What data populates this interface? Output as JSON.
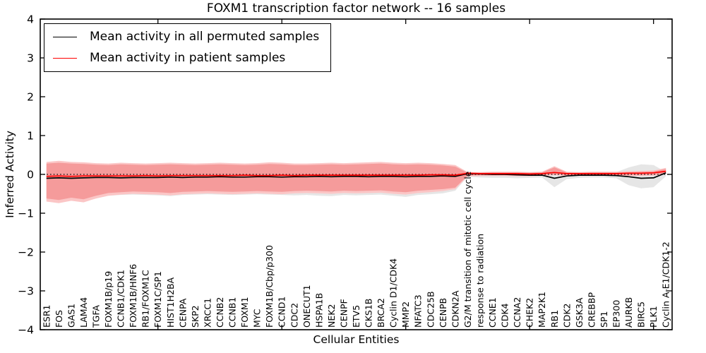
{
  "chart_data": {
    "type": "line",
    "title": "FOXM1 transcription factor network -- 16 samples",
    "xlabel": "Cellular Entities",
    "ylabel": "Inferred Activity",
    "ylim": [
      -4,
      4
    ],
    "yticks": [
      4,
      3,
      2,
      1,
      0,
      -1,
      -2,
      -3,
      -4
    ],
    "xticks": [
      10,
      20,
      30,
      40,
      50
    ],
    "grid": false,
    "legend_position": "upper left",
    "zero_reference_line": "dotted black at y=0",
    "categories": [
      "ESR1",
      "FOS",
      "GAS1",
      "LAMA4",
      "TGFA",
      "FOXM1B/p19",
      "CCNB1/CDK1",
      "FOXM1B/HNF6",
      "RB1/FOXM1C",
      "FOXM1C/SP1",
      "HIST1H2BA",
      "CENPA",
      "SKP2",
      "XRCC1",
      "CCNB2",
      "CCNB1",
      "FOXM1",
      "MYC",
      "FOXM1B/Cbp/p300",
      "CCND1",
      "CDC2",
      "ONECUT1",
      "HSPA1B",
      "NEK2",
      "CENPF",
      "ETV5",
      "CKS1B",
      "BRCA2",
      "Cyclin D1/CDK4",
      "MMP2",
      "NFATC3",
      "CDC25B",
      "CENPB",
      "CDKN2A",
      "G2/M transition of mitotic cell cycle",
      "response to radiation",
      "CCNE1",
      "CDK4",
      "CCNA2",
      "CHEK2",
      "MAP2K1",
      "RB1",
      "CDK2",
      "GSK3A",
      "CREBBP",
      "SP1",
      "EP300",
      "AURKB",
      "BIRC5",
      "PLK1",
      "Cyclin A-E1/CDK1-2"
    ],
    "series": [
      {
        "name": "Mean activity in all permuted samples",
        "color": "#000000",
        "values": [
          -0.1,
          -0.09,
          -0.1,
          -0.09,
          -0.08,
          -0.08,
          -0.09,
          -0.08,
          -0.08,
          -0.08,
          -0.07,
          -0.08,
          -0.07,
          -0.07,
          -0.06,
          -0.07,
          -0.07,
          -0.06,
          -0.06,
          -0.07,
          -0.06,
          -0.06,
          -0.05,
          -0.06,
          -0.05,
          -0.05,
          -0.06,
          -0.05,
          -0.05,
          -0.06,
          -0.05,
          -0.05,
          -0.04,
          -0.05,
          0.02,
          0.01,
          0.0,
          0.0,
          -0.01,
          -0.02,
          -0.02,
          -0.1,
          -0.04,
          -0.02,
          -0.02,
          -0.02,
          -0.03,
          -0.06,
          -0.1,
          -0.09,
          0.04
        ]
      },
      {
        "name": "Mean activity in patient samples",
        "color": "#ff0000",
        "values": [
          -0.05,
          -0.04,
          -0.05,
          -0.04,
          -0.04,
          -0.04,
          -0.04,
          -0.04,
          -0.03,
          -0.04,
          -0.03,
          -0.03,
          -0.03,
          -0.03,
          -0.03,
          -0.03,
          -0.02,
          -0.03,
          -0.03,
          -0.02,
          -0.03,
          -0.02,
          -0.02,
          -0.02,
          -0.02,
          -0.02,
          -0.02,
          -0.02,
          -0.02,
          -0.02,
          -0.02,
          -0.01,
          -0.01,
          -0.02,
          0.03,
          0.02,
          0.02,
          0.02,
          0.02,
          0.01,
          0.02,
          0.05,
          0.02,
          0.02,
          0.02,
          0.02,
          0.02,
          0.03,
          0.03,
          0.04,
          0.08
        ]
      }
    ],
    "bands": [
      {
        "name": "permuted-range",
        "color": "#e6e6e6",
        "upper": [
          0.2,
          0.22,
          0.2,
          0.2,
          0.19,
          0.18,
          0.19,
          0.19,
          0.18,
          0.19,
          0.19,
          0.19,
          0.18,
          0.19,
          0.19,
          0.19,
          0.18,
          0.19,
          0.2,
          0.19,
          0.18,
          0.18,
          0.19,
          0.19,
          0.18,
          0.19,
          0.19,
          0.2,
          0.19,
          0.18,
          0.19,
          0.18,
          0.17,
          0.15,
          0.05,
          0.05,
          0.05,
          0.05,
          0.05,
          0.05,
          0.05,
          0.06,
          0.05,
          0.05,
          0.05,
          0.05,
          0.06,
          0.18,
          0.26,
          0.24,
          0.06
        ],
        "lower": [
          -0.68,
          -0.72,
          -0.66,
          -0.7,
          -0.62,
          -0.55,
          -0.53,
          -0.52,
          -0.53,
          -0.54,
          -0.56,
          -0.53,
          -0.52,
          -0.51,
          -0.52,
          -0.53,
          -0.52,
          -0.51,
          -0.52,
          -0.53,
          -0.54,
          -0.53,
          -0.55,
          -0.56,
          -0.53,
          -0.54,
          -0.53,
          -0.52,
          -0.55,
          -0.58,
          -0.53,
          -0.51,
          -0.49,
          -0.42,
          -0.06,
          -0.08,
          -0.09,
          -0.09,
          -0.1,
          -0.09,
          -0.08,
          -0.33,
          -0.12,
          -0.09,
          -0.08,
          -0.08,
          -0.1,
          -0.28,
          -0.36,
          -0.33,
          -0.05
        ]
      },
      {
        "name": "patient-range-outer",
        "color": "#fbc6c6",
        "upper": [
          0.32,
          0.35,
          0.32,
          0.31,
          0.29,
          0.28,
          0.3,
          0.29,
          0.28,
          0.29,
          0.3,
          0.29,
          0.28,
          0.29,
          0.3,
          0.29,
          0.28,
          0.29,
          0.31,
          0.3,
          0.28,
          0.28,
          0.29,
          0.3,
          0.29,
          0.3,
          0.31,
          0.32,
          0.3,
          0.29,
          0.3,
          0.29,
          0.27,
          0.24,
          0.06,
          0.06,
          0.07,
          0.07,
          0.07,
          0.06,
          0.07,
          0.21,
          0.07,
          0.06,
          0.07,
          0.07,
          0.07,
          0.08,
          0.09,
          0.1,
          0.17
        ],
        "lower": [
          -0.7,
          -0.74,
          -0.68,
          -0.72,
          -0.62,
          -0.55,
          -0.52,
          -0.5,
          -0.51,
          -0.52,
          -0.54,
          -0.51,
          -0.5,
          -0.49,
          -0.5,
          -0.51,
          -0.5,
          -0.49,
          -0.5,
          -0.51,
          -0.49,
          -0.48,
          -0.49,
          -0.5,
          -0.48,
          -0.49,
          -0.48,
          -0.47,
          -0.5,
          -0.52,
          -0.48,
          -0.46,
          -0.43,
          -0.38,
          -0.05,
          -0.04,
          -0.04,
          -0.04,
          -0.05,
          -0.05,
          -0.04,
          -0.02,
          -0.04,
          -0.04,
          -0.04,
          -0.04,
          -0.04,
          -0.04,
          -0.04,
          -0.03,
          0.01
        ]
      },
      {
        "name": "patient-range-inner",
        "color": "#f59b9b",
        "upper": [
          0.28,
          0.3,
          0.28,
          0.27,
          0.25,
          0.24,
          0.26,
          0.25,
          0.24,
          0.25,
          0.26,
          0.25,
          0.24,
          0.25,
          0.26,
          0.25,
          0.24,
          0.25,
          0.27,
          0.26,
          0.24,
          0.24,
          0.25,
          0.26,
          0.25,
          0.26,
          0.27,
          0.28,
          0.26,
          0.25,
          0.26,
          0.25,
          0.23,
          0.2,
          0.04,
          0.04,
          0.05,
          0.05,
          0.05,
          0.04,
          0.05,
          0.18,
          0.05,
          0.04,
          0.05,
          0.05,
          0.05,
          0.06,
          0.07,
          0.08,
          0.14
        ],
        "lower": [
          -0.62,
          -0.66,
          -0.6,
          -0.64,
          -0.55,
          -0.48,
          -0.46,
          -0.44,
          -0.45,
          -0.46,
          -0.48,
          -0.45,
          -0.44,
          -0.43,
          -0.44,
          -0.45,
          -0.44,
          -0.43,
          -0.44,
          -0.45,
          -0.43,
          -0.42,
          -0.43,
          -0.44,
          -0.42,
          -0.43,
          -0.42,
          -0.41,
          -0.44,
          -0.46,
          -0.42,
          -0.4,
          -0.38,
          -0.34,
          -0.03,
          -0.02,
          -0.02,
          -0.02,
          -0.03,
          -0.03,
          -0.02,
          0.0,
          -0.02,
          -0.02,
          -0.02,
          -0.02,
          -0.02,
          -0.02,
          -0.02,
          -0.01,
          0.03
        ]
      }
    ]
  }
}
